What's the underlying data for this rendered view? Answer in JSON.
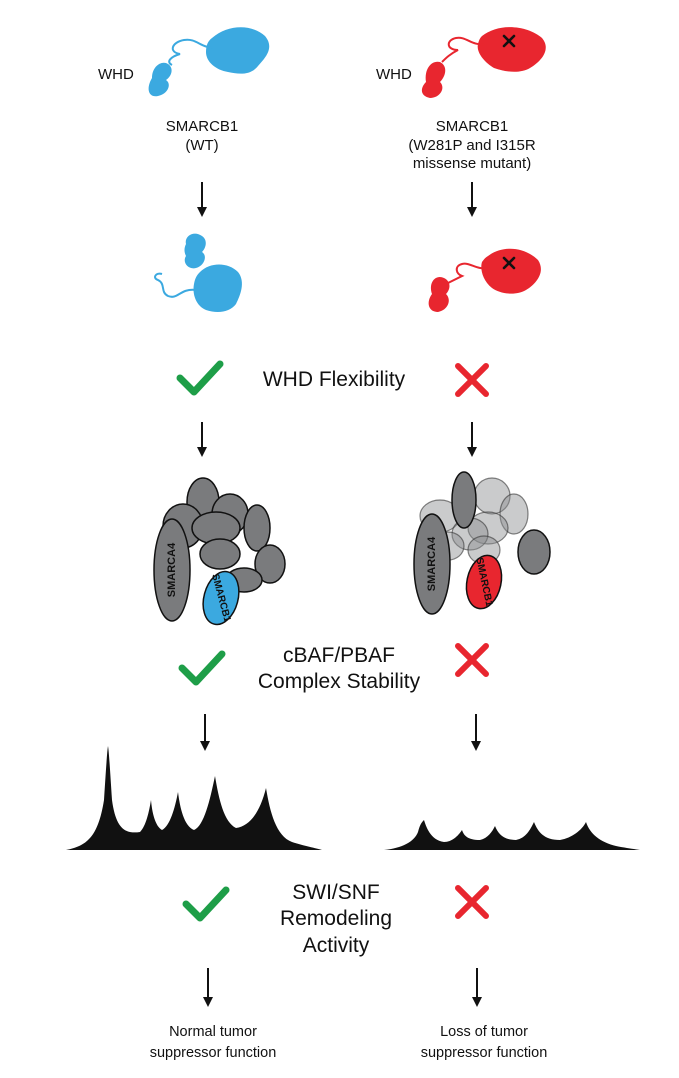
{
  "colors": {
    "wildtype": "#3ba9e0",
    "mutant": "#e8262f",
    "check": "#1e9e48",
    "cross": "#e8262f",
    "complex_subunit": "#7a7b7d",
    "chromatin": "#111111"
  },
  "left": {
    "whd_label": "WHD",
    "protein_name": "SMARCB1",
    "variant": "(WT)",
    "smarca4_label": "SMARCA4",
    "smarcb1_label": "SMARCB1",
    "outcome": "Normal tumor\nsuppressor function"
  },
  "right": {
    "whd_label": "WHD",
    "protein_name": "SMARCB1",
    "variant": "(W281P and I315R\nmissense mutant)",
    "smarca4_label": "SMARCA4",
    "smarcb1_label": "SMARCB1",
    "outcome": "Loss of tumor\nsuppressor function"
  },
  "criteria": {
    "flexibility": "WHD Flexibility",
    "stability": "cBAF/PBAF\nComplex Stability",
    "remodeling": "SWI/SNF\nRemodeling\nActivity"
  },
  "icons": {
    "pass": "checkmark-icon",
    "fail": "cross-icon",
    "step": "down-arrow-icon",
    "mutation_mark": "mutation-x-icon"
  }
}
